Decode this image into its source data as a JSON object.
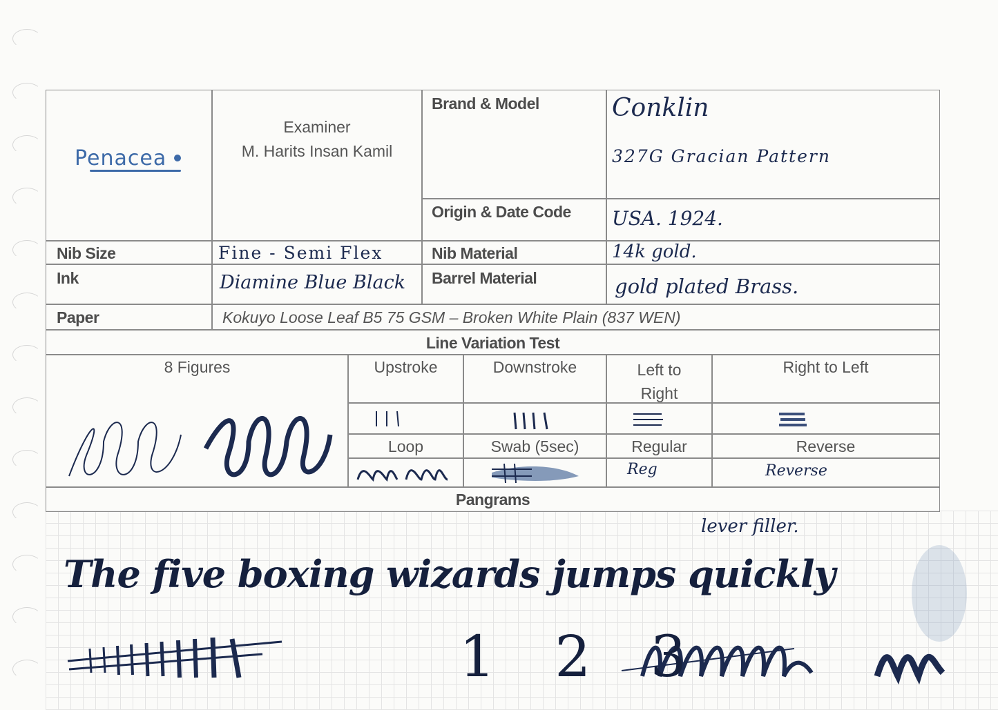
{
  "form": {
    "logo_text": "Penacea",
    "examiner_label": "Examiner",
    "examiner_name": "M. Harits Insan Kamil",
    "brand_model_label": "Brand & Model",
    "brand_value": "Conklin",
    "model_value": "327G Gracian Pattern",
    "origin_label": "Origin & Date Code",
    "origin_value": "USA. 1924.",
    "nib_size_label": "Nib Size",
    "nib_size_value": "Fine - Semi Flex",
    "nib_material_label": "Nib Material",
    "nib_material_value": "14k gold.",
    "ink_label": "Ink",
    "ink_value": "Diamine Blue Black",
    "barrel_label": "Barrel Material",
    "barrel_value": "gold plated Brass.",
    "paper_label": "Paper",
    "paper_value": "Kokuyo Loose Leaf B5 75 GSM – Broken White Plain (837 WEN)"
  },
  "line_variation": {
    "title": "Line Variation Test",
    "headers": [
      "8 Figures",
      "Upstroke",
      "Downstroke",
      "Left to Right",
      "Right to Left"
    ],
    "headers2": [
      "Loop",
      "Swab (5sec)",
      "Regular",
      "Reverse"
    ],
    "samples": {
      "regular": "Reg",
      "reverse": "Reverse"
    }
  },
  "pangrams": {
    "title": "Pangrams",
    "note": "lever filler.",
    "sentence": "The five boxing wizards jumps quickly",
    "numbers": "1 2 3"
  },
  "colors": {
    "ink": "#1c2a4f",
    "border": "#8a8a8a",
    "logo": "#3d6aa8"
  }
}
